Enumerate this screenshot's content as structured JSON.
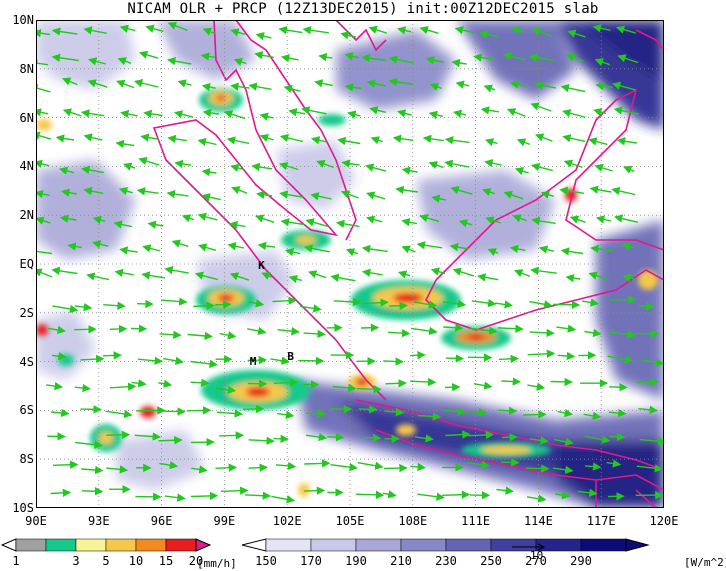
{
  "title": "NICAM OLR + PRCP (12Z13DEC2015) init:00Z12DEC2015 slab",
  "map": {
    "lat_labels": [
      "10N",
      "8N",
      "6N",
      "4N",
      "2N",
      "EQ",
      "2S",
      "4S",
      "6S",
      "8S",
      "10S"
    ],
    "lon_labels": [
      "90E",
      "93E",
      "96E",
      "99E",
      "102E",
      "105E",
      "108E",
      "111E",
      "114E",
      "117E",
      "120E"
    ],
    "lon_range": [
      90,
      120
    ],
    "lat_range": [
      -10,
      10
    ],
    "markers": [
      {
        "label": "K",
        "lon": 100.8,
        "lat": -0.1
      },
      {
        "label": "M",
        "lon": 100.4,
        "lat": -4.0
      },
      {
        "label": "B",
        "lon": 102.2,
        "lat": -3.8
      }
    ],
    "colors": {
      "coastline": "#e0188c",
      "wind_vector": "#22c81e",
      "grid": "#888888"
    }
  },
  "precip_bar": {
    "labels": [
      "1",
      "3",
      "5",
      "10",
      "15",
      "20"
    ],
    "units": "[mm/h]",
    "colors": [
      "#a0a0a0",
      "#16c88c",
      "#f8f496",
      "#f6c84a",
      "#f28a1e",
      "#e61e1e",
      "#e01a8c"
    ]
  },
  "olr_bar": {
    "labels": [
      "150",
      "170",
      "190",
      "210",
      "230",
      "250",
      "270",
      "290"
    ],
    "units": "[W/m^2]",
    "colors": [
      "#ffffff",
      "#e4e4f4",
      "#c8c8e8",
      "#a8a8d8",
      "#8888c8",
      "#6464b4",
      "#4040a0",
      "#24248c",
      "#0c0c78"
    ]
  },
  "ref_vector": {
    "label": "10"
  }
}
